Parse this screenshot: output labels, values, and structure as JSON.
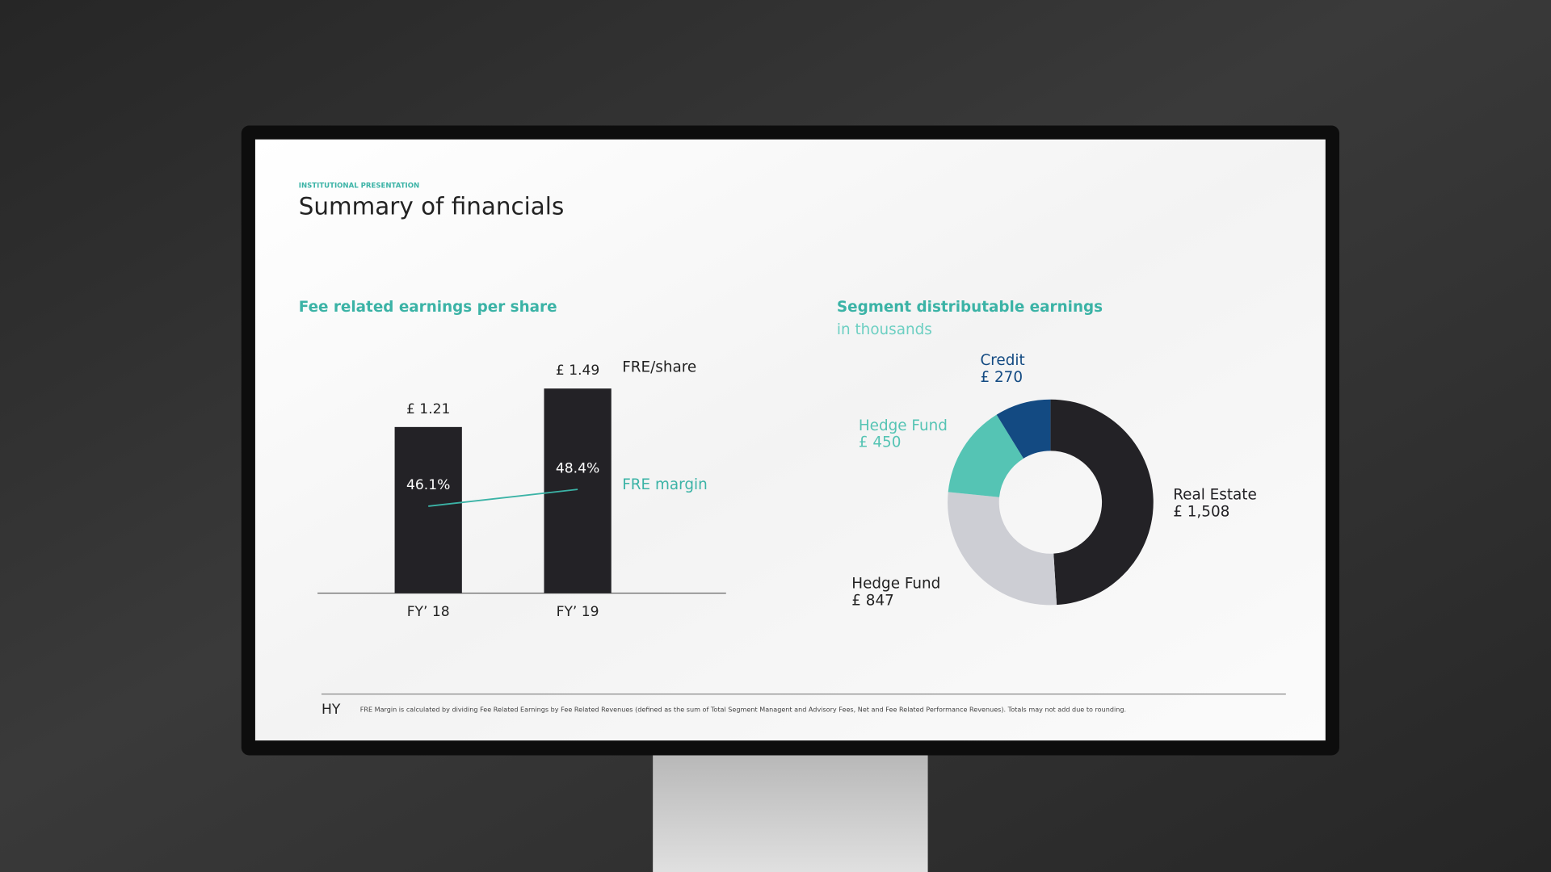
{
  "header": {
    "kicker": "INSTITUTIONAL PRESENTATION",
    "title": "Summary of financials"
  },
  "chart_data": [
    {
      "type": "bar",
      "title": "Fee related earnings per share",
      "categories": [
        "FY’ 18",
        "FY’ 19"
      ],
      "series": [
        {
          "name": "FRE/share",
          "color": "#232226",
          "values": [
            1.21,
            1.49
          ],
          "value_labels": [
            "£ 1.21",
            "£ 1.49"
          ]
        },
        {
          "name": "FRE margin",
          "color": "#3bb3a6",
          "type": "line",
          "axis": "y2",
          "values": [
            46.1,
            48.4
          ],
          "value_labels": [
            "46.1%",
            "48.4%"
          ]
        }
      ]
    },
    {
      "type": "donut",
      "title": "Segment distributable earnings",
      "subtitle": "in thousands",
      "categories": [
        "Real Estate",
        "Hedge Fund",
        "Hedge Fund",
        "Credit"
      ],
      "values": [
        1508,
        847,
        450,
        270
      ],
      "value_labels": [
        "£ 1,508",
        "£ 847",
        "£ 450",
        "£ 270"
      ],
      "colors": [
        "#232226",
        "#cdced4",
        "#55c4b4",
        "#134a82"
      ]
    }
  ],
  "footer": {
    "logo": "HY",
    "note": "FRE Margin is calculated by dividing Fee Related Earnings by Fee Related Revenues (defined as the sum of Total Segment Managent and Advisory Fees, Net and Fee Related Performance Revenues). Totals may not add due to rounding."
  }
}
